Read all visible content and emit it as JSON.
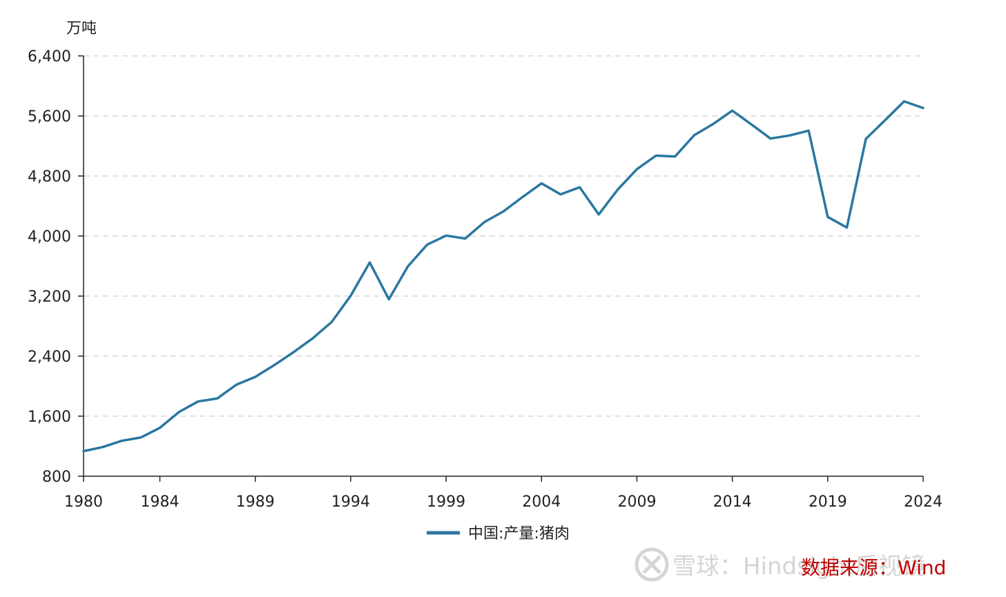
{
  "chart_data": {
    "type": "line",
    "title": "",
    "unit_label": "万吨",
    "xlabel": "",
    "ylabel": "",
    "x_ticks": [
      "1980",
      "1984",
      "1989",
      "1994",
      "1999",
      "2004",
      "2009",
      "2014",
      "2019",
      "2024"
    ],
    "y_ticks": [
      "800",
      "1,600",
      "2,400",
      "3,200",
      "4,000",
      "4,800",
      "5,600",
      "6,400"
    ],
    "xlim": [
      1980,
      2024
    ],
    "ylim": [
      800,
      6400
    ],
    "grid": true,
    "legend_position": "bottom-center",
    "series": [
      {
        "name": "中国:产量:猪肉",
        "color": "#2a77a0",
        "x": [
          1980,
          1981,
          1982,
          1983,
          1984,
          1985,
          1986,
          1987,
          1988,
          1989,
          1990,
          1991,
          1992,
          1993,
          1994,
          1995,
          1996,
          1997,
          1998,
          1999,
          2000,
          2001,
          2002,
          2003,
          2004,
          2005,
          2006,
          2007,
          2008,
          2009,
          2010,
          2011,
          2012,
          2013,
          2014,
          2015,
          2016,
          2017,
          2018,
          2019,
          2020,
          2021,
          2022,
          2023,
          2024
        ],
        "values": [
          1134,
          1188,
          1272,
          1316,
          1445,
          1655,
          1796,
          1835,
          2018,
          2123,
          2281,
          2452,
          2635,
          2854,
          3205,
          3648,
          3158,
          3596,
          3884,
          4006,
          3966,
          4185,
          4327,
          4519,
          4702,
          4555,
          4650,
          4288,
          4621,
          4891,
          5071,
          5060,
          5343,
          5493,
          5671,
          5487,
          5299,
          5340,
          5404,
          4255,
          4113,
          5296,
          5541,
          5794,
          5706
        ]
      }
    ]
  },
  "watermark": {
    "platform_icon": "xueqiu-logo-icon",
    "platform": "雪球",
    "separator": "：",
    "author": "Hindsight后视镜"
  },
  "source_note": "数据来源：Wind"
}
